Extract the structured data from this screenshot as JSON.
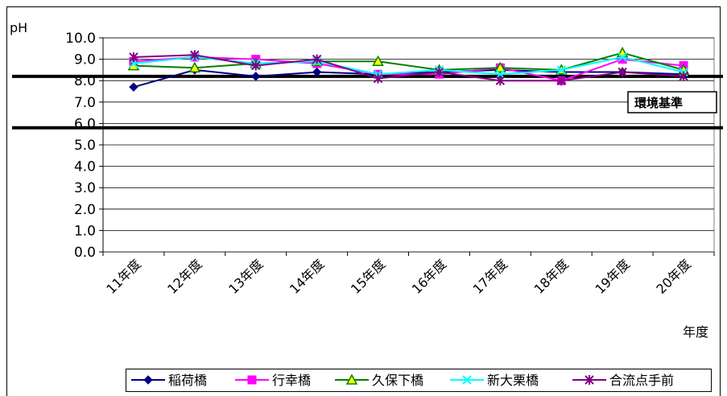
{
  "chart_data": {
    "type": "line",
    "ylabel": "pH",
    "xlabel": "年度",
    "categories": [
      "11年度",
      "12年度",
      "13年度",
      "14年度",
      "15年度",
      "16年度",
      "17年度",
      "18年度",
      "19年度",
      "20年度"
    ],
    "ylim": [
      0,
      10
    ],
    "yticks": [
      "0.0",
      "1.0",
      "2.0",
      "3.0",
      "4.0",
      "5.0",
      "6.0",
      "7.0",
      "8.0",
      "9.0",
      "10.0"
    ],
    "grid": true,
    "legend_position": "bottom",
    "annotation": "環境基準",
    "reference_lines": [
      8.2,
      5.8
    ],
    "series": [
      {
        "name": "稲荷橋",
        "color": "#000080",
        "marker": "diamond",
        "values": [
          7.7,
          8.5,
          8.2,
          8.4,
          8.3,
          8.4,
          8.5,
          8.4,
          8.4,
          8.3
        ]
      },
      {
        "name": "行幸橋",
        "color": "#ff00ff",
        "marker": "square",
        "values": [
          8.9,
          9.1,
          9.0,
          8.8,
          8.3,
          8.3,
          8.6,
          8.0,
          9.0,
          8.7
        ]
      },
      {
        "name": "久保下橋",
        "color": "#008000",
        "marker": "triangle",
        "values": [
          8.7,
          8.6,
          8.8,
          8.9,
          8.9,
          8.5,
          8.6,
          8.5,
          9.3,
          8.5
        ]
      },
      {
        "name": "新大栗橋",
        "color": "#00ffff",
        "marker": "x",
        "values": [
          8.8,
          9.1,
          8.8,
          8.9,
          8.3,
          8.5,
          8.3,
          8.5,
          9.1,
          8.4
        ]
      },
      {
        "name": "合流点手前",
        "color": "#800080",
        "marker": "asterisk",
        "values": [
          9.1,
          9.2,
          8.7,
          9.0,
          8.1,
          8.4,
          8.0,
          8.0,
          8.4,
          8.2
        ]
      }
    ]
  }
}
